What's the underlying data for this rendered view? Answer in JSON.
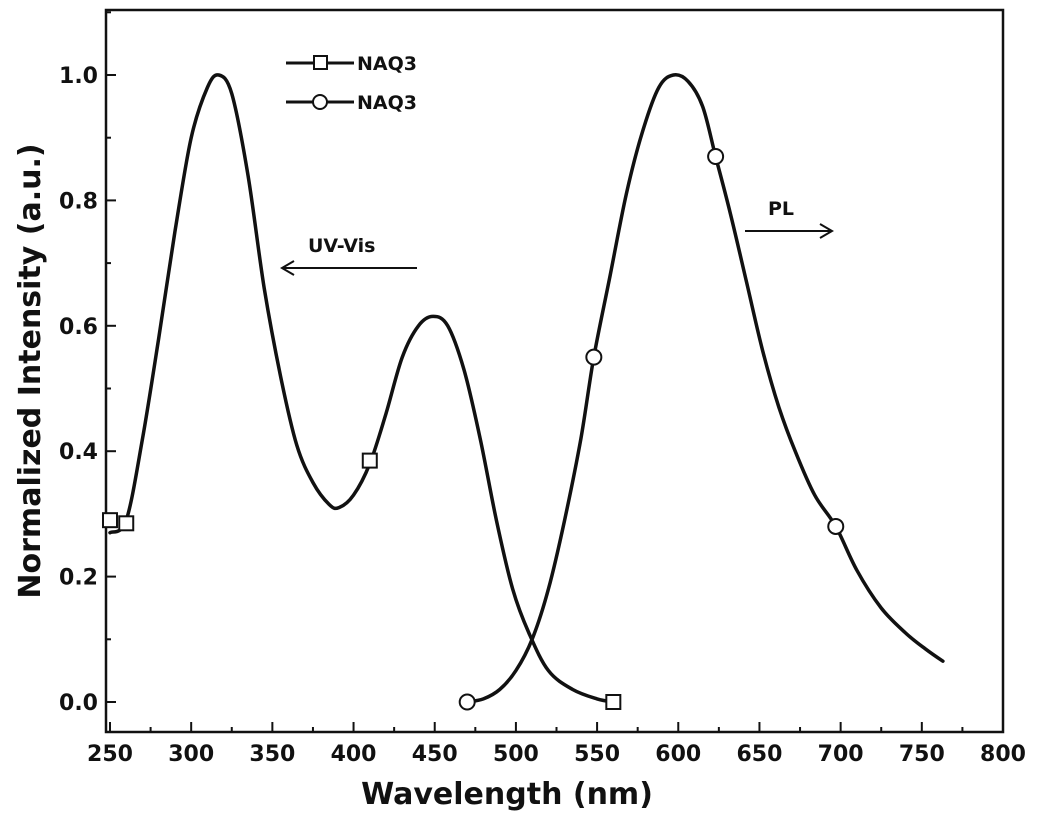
{
  "chart_data": {
    "type": "line",
    "xlabel": "Wavelength (nm)",
    "ylabel": "Normalized Intensity (a.u.)",
    "xlim": [
      250,
      800
    ],
    "ylim": [
      -0.05,
      1.1
    ],
    "xticks": [
      250,
      300,
      350,
      400,
      450,
      500,
      550,
      600,
      650,
      700,
      750,
      800
    ],
    "yticks": [
      0.0,
      0.2,
      0.4,
      0.6,
      0.8,
      1.0
    ],
    "legend_position": "top-left",
    "series": [
      {
        "name": "NAQ3",
        "marker": "square",
        "label": "UV-Vis",
        "curve": [
          [
            250,
            0.27
          ],
          [
            260,
            0.29
          ],
          [
            270,
            0.42
          ],
          [
            280,
            0.58
          ],
          [
            290,
            0.75
          ],
          [
            300,
            0.9
          ],
          [
            310,
            0.98
          ],
          [
            317,
            1.0
          ],
          [
            325,
            0.97
          ],
          [
            335,
            0.84
          ],
          [
            345,
            0.66
          ],
          [
            355,
            0.52
          ],
          [
            365,
            0.41
          ],
          [
            375,
            0.35
          ],
          [
            385,
            0.315
          ],
          [
            391,
            0.31
          ],
          [
            400,
            0.33
          ],
          [
            410,
            0.38
          ],
          [
            420,
            0.46
          ],
          [
            430,
            0.55
          ],
          [
            440,
            0.6
          ],
          [
            449,
            0.615
          ],
          [
            458,
            0.6
          ],
          [
            468,
            0.53
          ],
          [
            478,
            0.42
          ],
          [
            488,
            0.29
          ],
          [
            498,
            0.18
          ],
          [
            508,
            0.11
          ],
          [
            520,
            0.05
          ],
          [
            535,
            0.02
          ],
          [
            550,
            0.005
          ],
          [
            560,
            0.0
          ]
        ],
        "markers": [
          [
            250,
            0.29
          ],
          [
            260,
            0.285
          ],
          [
            410,
            0.385
          ],
          [
            560,
            0.0
          ]
        ]
      },
      {
        "name": "NAQ3",
        "marker": "circle",
        "label": "PL",
        "curve": [
          [
            470,
            0.0
          ],
          [
            480,
            0.005
          ],
          [
            490,
            0.02
          ],
          [
            500,
            0.05
          ],
          [
            510,
            0.1
          ],
          [
            520,
            0.18
          ],
          [
            530,
            0.29
          ],
          [
            540,
            0.42
          ],
          [
            548,
            0.55
          ],
          [
            558,
            0.68
          ],
          [
            568,
            0.81
          ],
          [
            578,
            0.91
          ],
          [
            588,
            0.98
          ],
          [
            597,
            1.0
          ],
          [
            606,
            0.99
          ],
          [
            615,
            0.95
          ],
          [
            623,
            0.87
          ],
          [
            632,
            0.78
          ],
          [
            642,
            0.67
          ],
          [
            652,
            0.56
          ],
          [
            662,
            0.47
          ],
          [
            672,
            0.4
          ],
          [
            684,
            0.33
          ],
          [
            697,
            0.28
          ],
          [
            710,
            0.21
          ],
          [
            725,
            0.15
          ],
          [
            740,
            0.11
          ],
          [
            752,
            0.085
          ],
          [
            763,
            0.065
          ]
        ],
        "markers": [
          [
            470,
            0.0
          ],
          [
            548,
            0.55
          ],
          [
            623,
            0.87
          ],
          [
            697,
            0.28
          ]
        ]
      }
    ],
    "annotations": [
      {
        "text": "UV-Vis",
        "arrow": "left"
      },
      {
        "text": "PL",
        "arrow": "right"
      }
    ]
  }
}
